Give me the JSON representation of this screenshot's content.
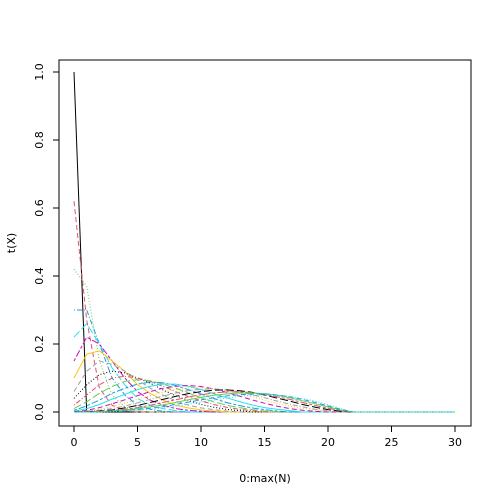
{
  "chart_data": {
    "type": "line",
    "title": "",
    "xlabel": "0:max(N)",
    "ylabel": "t(X)",
    "xlim": [
      0,
      30
    ],
    "ylim": [
      0,
      1
    ],
    "x_ticks": [
      0,
      5,
      10,
      15,
      20,
      25,
      30
    ],
    "x_tick_labels": [
      "0",
      "5",
      "10",
      "15",
      "20",
      "25",
      "30"
    ],
    "y_ticks": [
      0,
      0.2,
      0.4,
      0.6,
      0.8,
      1.0
    ],
    "y_tick_labels": [
      "0.0",
      "0.2",
      "0.4",
      "0.6",
      "0.8",
      "1.0"
    ],
    "grid": false,
    "legend": "none",
    "x": [
      0,
      1,
      2,
      3,
      4,
      5,
      6,
      7,
      8,
      9,
      10,
      11,
      12,
      13,
      14,
      15,
      16,
      17,
      18,
      19,
      20,
      21,
      22,
      23,
      24,
      25,
      26,
      27,
      28,
      29,
      30
    ],
    "series": [
      {
        "color": "#000000",
        "style": "solid",
        "values": [
          1.0,
          0.0,
          0.0,
          0.0,
          0.0,
          0.0,
          0.0,
          0.0,
          0.0,
          0.0,
          0.0,
          0.0,
          0.0,
          0.0,
          0.0,
          0.0,
          0.0,
          0.0,
          0.0,
          0.0,
          0.0,
          0.0,
          0.0,
          0.0,
          0.0,
          0.0,
          0.0,
          0.0,
          0.0,
          0.0,
          0.0
        ]
      },
      {
        "color": "#df536b",
        "style": "dashed",
        "values": [
          0.62,
          0.27,
          0.07,
          0.02,
          0.004,
          0.0,
          0.0,
          0.0,
          0.0,
          0.0,
          0.0,
          0.0,
          0.0,
          0.0,
          0.0,
          0.0,
          0.0,
          0.0,
          0.0,
          0.0,
          0.0,
          0.0,
          0.0,
          0.0,
          0.0,
          0.0,
          0.0,
          0.0,
          0.0,
          0.0,
          0.0
        ]
      },
      {
        "color": "#61d04f",
        "style": "dotted",
        "values": [
          0.42,
          0.37,
          0.15,
          0.05,
          0.015,
          0.004,
          0.0,
          0.0,
          0.0,
          0.0,
          0.0,
          0.0,
          0.0,
          0.0,
          0.0,
          0.0,
          0.0,
          0.0,
          0.0,
          0.0,
          0.0,
          0.0,
          0.0,
          0.0,
          0.0,
          0.0,
          0.0,
          0.0,
          0.0,
          0.0,
          0.0
        ]
      },
      {
        "color": "#2297e6",
        "style": "dotdash",
        "values": [
          0.3,
          0.3,
          0.2,
          0.1,
          0.05,
          0.02,
          0.008,
          0.002,
          0.0,
          0.0,
          0.0,
          0.0,
          0.0,
          0.0,
          0.0,
          0.0,
          0.0,
          0.0,
          0.0,
          0.0,
          0.0,
          0.0,
          0.0,
          0.0,
          0.0,
          0.0,
          0.0,
          0.0,
          0.0,
          0.0,
          0.0
        ]
      },
      {
        "color": "#28e2e5",
        "style": "longdash",
        "values": [
          0.22,
          0.26,
          0.2,
          0.13,
          0.08,
          0.04,
          0.02,
          0.01,
          0.004,
          0.0,
          0.0,
          0.0,
          0.0,
          0.0,
          0.0,
          0.0,
          0.0,
          0.0,
          0.0,
          0.0,
          0.0,
          0.0,
          0.0,
          0.0,
          0.0,
          0.0,
          0.0,
          0.0,
          0.0,
          0.0,
          0.0
        ]
      },
      {
        "color": "#cd0bbc",
        "style": "twodash",
        "values": [
          0.15,
          0.22,
          0.2,
          0.15,
          0.1,
          0.06,
          0.035,
          0.02,
          0.01,
          0.005,
          0.002,
          0.0,
          0.0,
          0.0,
          0.0,
          0.0,
          0.0,
          0.0,
          0.0,
          0.0,
          0.0,
          0.0,
          0.0,
          0.0,
          0.0,
          0.0,
          0.0,
          0.0,
          0.0,
          0.0,
          0.0
        ]
      },
      {
        "color": "#f5c710",
        "style": "solid",
        "values": [
          0.1,
          0.17,
          0.18,
          0.15,
          0.12,
          0.08,
          0.055,
          0.035,
          0.02,
          0.012,
          0.006,
          0.003,
          0.0,
          0.0,
          0.0,
          0.0,
          0.0,
          0.0,
          0.0,
          0.0,
          0.0,
          0.0,
          0.0,
          0.0,
          0.0,
          0.0,
          0.0,
          0.0,
          0.0,
          0.0,
          0.0
        ]
      },
      {
        "color": "#9e9e9e",
        "style": "dashed",
        "values": [
          0.06,
          0.12,
          0.15,
          0.14,
          0.12,
          0.095,
          0.07,
          0.05,
          0.033,
          0.02,
          0.012,
          0.007,
          0.003,
          0.0,
          0.0,
          0.0,
          0.0,
          0.0,
          0.0,
          0.0,
          0.0,
          0.0,
          0.0,
          0.0,
          0.0,
          0.0,
          0.0,
          0.0,
          0.0,
          0.0,
          0.0
        ]
      },
      {
        "color": "#000000",
        "style": "dotted",
        "values": [
          0.04,
          0.08,
          0.11,
          0.12,
          0.115,
          0.1,
          0.085,
          0.065,
          0.048,
          0.034,
          0.022,
          0.014,
          0.008,
          0.004,
          0.0,
          0.0,
          0.0,
          0.0,
          0.0,
          0.0,
          0.0,
          0.0,
          0.0,
          0.0,
          0.0,
          0.0,
          0.0,
          0.0,
          0.0,
          0.0,
          0.0
        ]
      },
      {
        "color": "#df536b",
        "style": "dotdash",
        "values": [
          0.02,
          0.05,
          0.08,
          0.1,
          0.105,
          0.1,
          0.09,
          0.076,
          0.06,
          0.045,
          0.033,
          0.022,
          0.014,
          0.008,
          0.004,
          0.0,
          0.0,
          0.0,
          0.0,
          0.0,
          0.0,
          0.0,
          0.0,
          0.0,
          0.0,
          0.0,
          0.0,
          0.0,
          0.0,
          0.0,
          0.0
        ]
      },
      {
        "color": "#61d04f",
        "style": "longdash",
        "values": [
          0.01,
          0.03,
          0.055,
          0.075,
          0.09,
          0.095,
          0.092,
          0.082,
          0.07,
          0.056,
          0.042,
          0.03,
          0.02,
          0.013,
          0.007,
          0.003,
          0.0,
          0.0,
          0.0,
          0.0,
          0.0,
          0.0,
          0.0,
          0.0,
          0.0,
          0.0,
          0.0,
          0.0,
          0.0,
          0.0,
          0.0
        ]
      },
      {
        "color": "#2297e6",
        "style": "twodash",
        "values": [
          0.005,
          0.018,
          0.035,
          0.055,
          0.07,
          0.082,
          0.088,
          0.086,
          0.078,
          0.066,
          0.053,
          0.04,
          0.028,
          0.019,
          0.012,
          0.007,
          0.003,
          0.0,
          0.0,
          0.0,
          0.0,
          0.0,
          0.0,
          0.0,
          0.0,
          0.0,
          0.0,
          0.0,
          0.0,
          0.0,
          0.0
        ]
      },
      {
        "color": "#28e2e5",
        "style": "solid",
        "values": [
          0.002,
          0.01,
          0.022,
          0.038,
          0.052,
          0.066,
          0.076,
          0.082,
          0.082,
          0.076,
          0.066,
          0.054,
          0.042,
          0.031,
          0.021,
          0.013,
          0.008,
          0.004,
          0.0,
          0.0,
          0.0,
          0.0,
          0.0,
          0.0,
          0.0,
          0.0,
          0.0,
          0.0,
          0.0,
          0.0,
          0.0
        ]
      },
      {
        "color": "#cd0bbc",
        "style": "dashed",
        "values": [
          0.001,
          0.005,
          0.013,
          0.024,
          0.036,
          0.048,
          0.06,
          0.07,
          0.076,
          0.078,
          0.075,
          0.068,
          0.058,
          0.047,
          0.036,
          0.026,
          0.017,
          0.01,
          0.005,
          0.002,
          0.0,
          0.0,
          0.0,
          0.0,
          0.0,
          0.0,
          0.0,
          0.0,
          0.0,
          0.0,
          0.0
        ]
      },
      {
        "color": "#f5c710",
        "style": "dotted",
        "values": [
          0.0,
          0.003,
          0.008,
          0.016,
          0.026,
          0.037,
          0.048,
          0.058,
          0.066,
          0.071,
          0.072,
          0.069,
          0.063,
          0.055,
          0.045,
          0.035,
          0.025,
          0.017,
          0.01,
          0.005,
          0.002,
          0.0,
          0.0,
          0.0,
          0.0,
          0.0,
          0.0,
          0.0,
          0.0,
          0.0,
          0.0
        ]
      },
      {
        "color": "#9e9e9e",
        "style": "dotdash",
        "values": [
          0.0,
          0.002,
          0.005,
          0.01,
          0.018,
          0.027,
          0.037,
          0.047,
          0.056,
          0.063,
          0.067,
          0.068,
          0.065,
          0.059,
          0.051,
          0.042,
          0.032,
          0.023,
          0.015,
          0.008,
          0.004,
          0.0,
          0.0,
          0.0,
          0.0,
          0.0,
          0.0,
          0.0,
          0.0,
          0.0,
          0.0
        ]
      },
      {
        "color": "#000000",
        "style": "longdash",
        "values": [
          0.0,
          0.001,
          0.003,
          0.006,
          0.012,
          0.019,
          0.028,
          0.037,
          0.046,
          0.054,
          0.06,
          0.064,
          0.065,
          0.063,
          0.058,
          0.05,
          0.041,
          0.032,
          0.022,
          0.014,
          0.007,
          0.002,
          0.0,
          0.0,
          0.0,
          0.0,
          0.0,
          0.0,
          0.0,
          0.0,
          0.0
        ]
      },
      {
        "color": "#df536b",
        "style": "twodash",
        "values": [
          0.0,
          0.0,
          0.002,
          0.004,
          0.008,
          0.013,
          0.02,
          0.028,
          0.036,
          0.044,
          0.051,
          0.056,
          0.059,
          0.059,
          0.057,
          0.052,
          0.045,
          0.037,
          0.028,
          0.019,
          0.011,
          0.004,
          0.0,
          0.0,
          0.0,
          0.0,
          0.0,
          0.0,
          0.0,
          0.0,
          0.0
        ]
      },
      {
        "color": "#61d04f",
        "style": "solid",
        "values": [
          0.0,
          0.0,
          0.001,
          0.003,
          0.006,
          0.01,
          0.015,
          0.021,
          0.028,
          0.036,
          0.043,
          0.049,
          0.053,
          0.056,
          0.056,
          0.054,
          0.049,
          0.042,
          0.033,
          0.024,
          0.015,
          0.006,
          0.0,
          0.0,
          0.0,
          0.0,
          0.0,
          0.0,
          0.0,
          0.0,
          0.0
        ]
      },
      {
        "color": "#2297e6",
        "style": "dashed",
        "values": [
          0.0,
          0.0,
          0.0,
          0.002,
          0.004,
          0.007,
          0.011,
          0.016,
          0.022,
          0.029,
          0.036,
          0.042,
          0.047,
          0.051,
          0.053,
          0.053,
          0.05,
          0.045,
          0.037,
          0.028,
          0.018,
          0.008,
          0.0,
          0.0,
          0.0,
          0.0,
          0.0,
          0.0,
          0.0,
          0.0,
          0.0
        ]
      },
      {
        "color": "#28e2e5",
        "style": "dotted",
        "values": [
          0.0,
          0.0,
          0.0,
          0.001,
          0.003,
          0.005,
          0.008,
          0.012,
          0.017,
          0.023,
          0.029,
          0.035,
          0.041,
          0.046,
          0.049,
          0.05,
          0.049,
          0.046,
          0.04,
          0.032,
          0.022,
          0.01,
          0.0,
          0.0,
          0.0,
          0.0,
          0.0,
          0.0,
          0.0,
          0.0,
          0.0
        ]
      }
    ]
  }
}
